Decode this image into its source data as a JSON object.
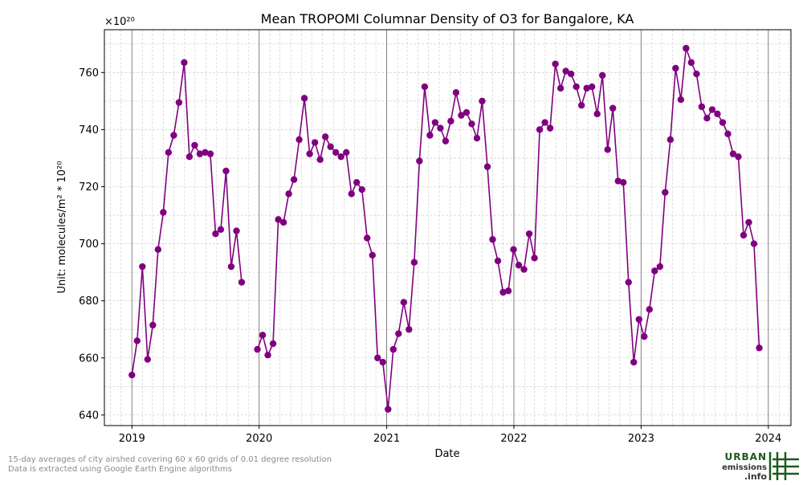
{
  "chart_data": {
    "type": "line",
    "title": "Mean TROPOMI Columnar Density of O3 for Bangalore, KA",
    "xlabel": "Date",
    "ylabel": "Unit: molecules/m² * 10²⁰",
    "offset_text": "×10²⁰",
    "x_tick_labels": [
      "2019",
      "2020",
      "2021",
      "2022",
      "2023",
      "2024"
    ],
    "y_ticks": [
      640,
      660,
      680,
      700,
      720,
      740,
      760
    ],
    "xlim": [
      "2018-10-14",
      "2024-03-06"
    ],
    "ylim": [
      636.3,
      775
    ],
    "color": "#800080",
    "grid": true,
    "segments": [
      {
        "x": [
          "2019-01-01",
          "2019-01-16",
          "2019-01-31",
          "2019-02-15",
          "2019-03-02",
          "2019-03-17",
          "2019-04-01",
          "2019-04-16",
          "2019-05-01",
          "2019-05-16",
          "2019-05-31",
          "2019-06-15",
          "2019-06-30",
          "2019-07-15",
          "2019-07-30",
          "2019-08-14",
          "2019-08-29",
          "2019-09-13",
          "2019-09-28",
          "2019-10-13",
          "2019-10-28",
          "2019-11-12"
        ],
        "y": [
          654.0,
          666.0,
          692.0,
          659.5,
          671.5,
          698.0,
          711.0,
          732.0,
          738.0,
          749.5,
          763.5,
          730.5,
          734.5,
          731.5,
          732.0,
          731.5,
          703.5,
          705.0,
          725.5,
          692.0,
          704.5,
          686.5
        ]
      },
      {
        "x": [
          "2019-12-27",
          "2020-01-11",
          "2020-01-26",
          "2020-02-10",
          "2020-02-25",
          "2020-03-11",
          "2020-03-26",
          "2020-04-10",
          "2020-04-25",
          "2020-05-10",
          "2020-05-25",
          "2020-06-09",
          "2020-06-24",
          "2020-07-09",
          "2020-07-24",
          "2020-08-08",
          "2020-08-23",
          "2020-09-07",
          "2020-09-22",
          "2020-10-07",
          "2020-10-22",
          "2020-11-06",
          "2020-11-21",
          "2020-12-06",
          "2020-12-21",
          "2021-01-05",
          "2021-01-20",
          "2021-02-04",
          "2021-02-19",
          "2021-03-06",
          "2021-03-21",
          "2021-04-05",
          "2021-04-20",
          "2021-05-05",
          "2021-05-20",
          "2021-06-04",
          "2021-06-19",
          "2021-07-04",
          "2021-07-19",
          "2021-08-03",
          "2021-08-18",
          "2021-09-02",
          "2021-09-17",
          "2021-10-02",
          "2021-10-17",
          "2021-11-01",
          "2021-11-16",
          "2021-12-01",
          "2021-12-16",
          "2021-12-31",
          "2022-01-15",
          "2022-01-30",
          "2022-02-14",
          "2022-03-01",
          "2022-03-16",
          "2022-03-31",
          "2022-04-15",
          "2022-04-30",
          "2022-05-15",
          "2022-05-30",
          "2022-06-14",
          "2022-06-29",
          "2022-07-14",
          "2022-07-29",
          "2022-08-13",
          "2022-08-28",
          "2022-09-12",
          "2022-09-27",
          "2022-10-12",
          "2022-10-27",
          "2022-11-11",
          "2022-11-26",
          "2022-12-11",
          "2022-12-26",
          "2023-01-10",
          "2023-01-25",
          "2023-02-09",
          "2023-02-24",
          "2023-03-11",
          "2023-03-26",
          "2023-04-10",
          "2023-04-25",
          "2023-05-10",
          "2023-05-25",
          "2023-06-09",
          "2023-06-24",
          "2023-07-09",
          "2023-07-24",
          "2023-08-08",
          "2023-08-23",
          "2023-09-07",
          "2023-09-22",
          "2023-10-07",
          "2023-10-22",
          "2023-11-06",
          "2023-11-21",
          "2023-12-06"
        ],
        "y": [
          663.0,
          668.0,
          661.0,
          665.0,
          708.5,
          707.5,
          717.5,
          722.5,
          736.5,
          751.0,
          731.5,
          735.5,
          729.5,
          737.5,
          734.0,
          732.0,
          730.5,
          732.0,
          717.5,
          721.5,
          719.0,
          702.0,
          696.0,
          660.0,
          658.5,
          642.0,
          663.0,
          668.5,
          679.5,
          670.0,
          693.5,
          729.0,
          755.0,
          738.0,
          742.5,
          740.5,
          736.0,
          743.0,
          753.0,
          745.0,
          746.0,
          742.0,
          737.0,
          750.0,
          727.0,
          701.5,
          694.0,
          683.0,
          683.5,
          698.0,
          692.5,
          691.0,
          703.5,
          695.0,
          740.0,
          742.5,
          740.5,
          763.0,
          754.5,
          760.5,
          759.5,
          755.0,
          748.5,
          754.5,
          755.0,
          745.5,
          759.0,
          733.0,
          747.5,
          722.0,
          721.5,
          686.5,
          658.5,
          673.5,
          667.5,
          677.0,
          690.5,
          692.0,
          718.0,
          736.5,
          761.5,
          750.5,
          768.5,
          763.5,
          759.5,
          748.0,
          744.0,
          747.0,
          745.5,
          742.5,
          738.5,
          731.5,
          730.5,
          703.0,
          707.5,
          700.0,
          663.5
        ]
      }
    ]
  },
  "footnote": {
    "line1": "15-day averages of city airshed covering 60 x 60 grids of 0.01 degree resolution",
    "line2": "Data is extracted using Google Earth Engine algorithms"
  },
  "logo": {
    "line1": "URBAN",
    "line2": "emissions",
    "line3": ".info",
    "color": "#1e5a1e"
  }
}
